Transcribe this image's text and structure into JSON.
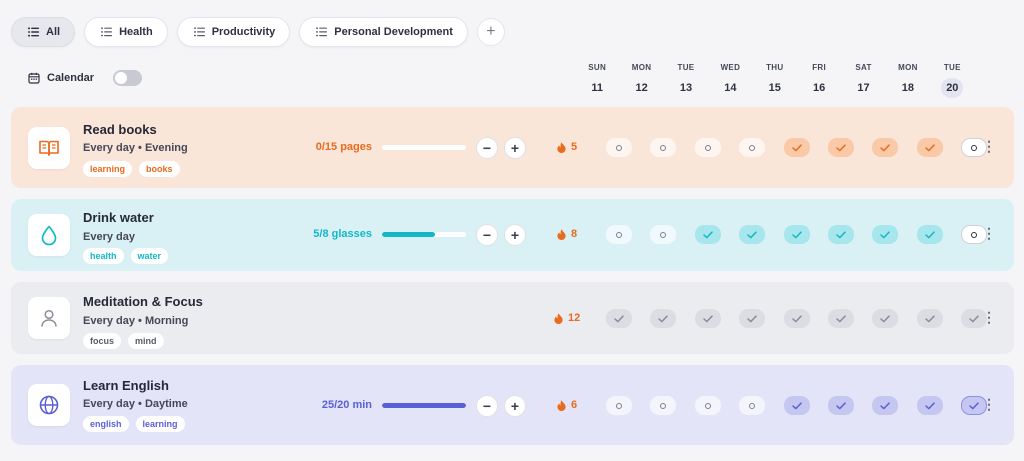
{
  "tabs": [
    {
      "label": "All",
      "active": true
    },
    {
      "label": "Health",
      "active": false
    },
    {
      "label": "Productivity",
      "active": false
    },
    {
      "label": "Personal Development",
      "active": false
    }
  ],
  "add_tab_label": "+",
  "calendar": {
    "label": "Calendar",
    "toggle_on": false
  },
  "days": [
    {
      "name": "SUN",
      "date": "11"
    },
    {
      "name": "MON",
      "date": "12"
    },
    {
      "name": "TUE",
      "date": "13"
    },
    {
      "name": "WED",
      "date": "14"
    },
    {
      "name": "THU",
      "date": "15"
    },
    {
      "name": "FRI",
      "date": "16"
    },
    {
      "name": "SAT",
      "date": "17"
    },
    {
      "name": "MON",
      "date": "18"
    },
    {
      "name": "TUE",
      "date": "20"
    }
  ],
  "habits": [
    {
      "title": "Read books",
      "schedule": "Every day • Evening",
      "tags": [
        "learning",
        "books"
      ],
      "progress_text": "0/15 pages",
      "progress_fraction": 0,
      "streak": "5",
      "icon": "book-icon",
      "color": "#e96b1e",
      "bg": "#fae5d9",
      "checks": [
        false,
        false,
        false,
        false,
        true,
        true,
        true,
        true,
        false
      ]
    },
    {
      "title": "Drink water",
      "schedule": "Every day",
      "tags": [
        "health",
        "water"
      ],
      "progress_text": "5/8 glasses",
      "progress_fraction": 0.625,
      "streak": "8",
      "icon": "water-drop-icon",
      "color": "#13b8c7",
      "bg": "#d9f1f5",
      "checks": [
        false,
        false,
        true,
        true,
        true,
        true,
        true,
        true,
        false
      ]
    },
    {
      "title": "Meditation & Focus",
      "schedule": "Every day • Morning",
      "tags": [
        "focus",
        "mind"
      ],
      "progress_text": "",
      "progress_fraction": null,
      "streak": "12",
      "icon": "person-icon",
      "color": "#8a8d99",
      "bg": "#ebecef",
      "checks": [
        true,
        true,
        true,
        true,
        true,
        true,
        true,
        true,
        true
      ]
    },
    {
      "title": "Learn English",
      "schedule": "Every day • Daytime",
      "tags": [
        "english",
        "learning"
      ],
      "progress_text": "25/20 min",
      "progress_fraction": 1,
      "streak": "6",
      "icon": "globe-icon",
      "color": "#5b5fd6",
      "bg": "#e3e4f7",
      "checks": [
        false,
        false,
        false,
        false,
        true,
        true,
        true,
        true,
        true
      ]
    }
  ],
  "menu_glyph": "⋮"
}
